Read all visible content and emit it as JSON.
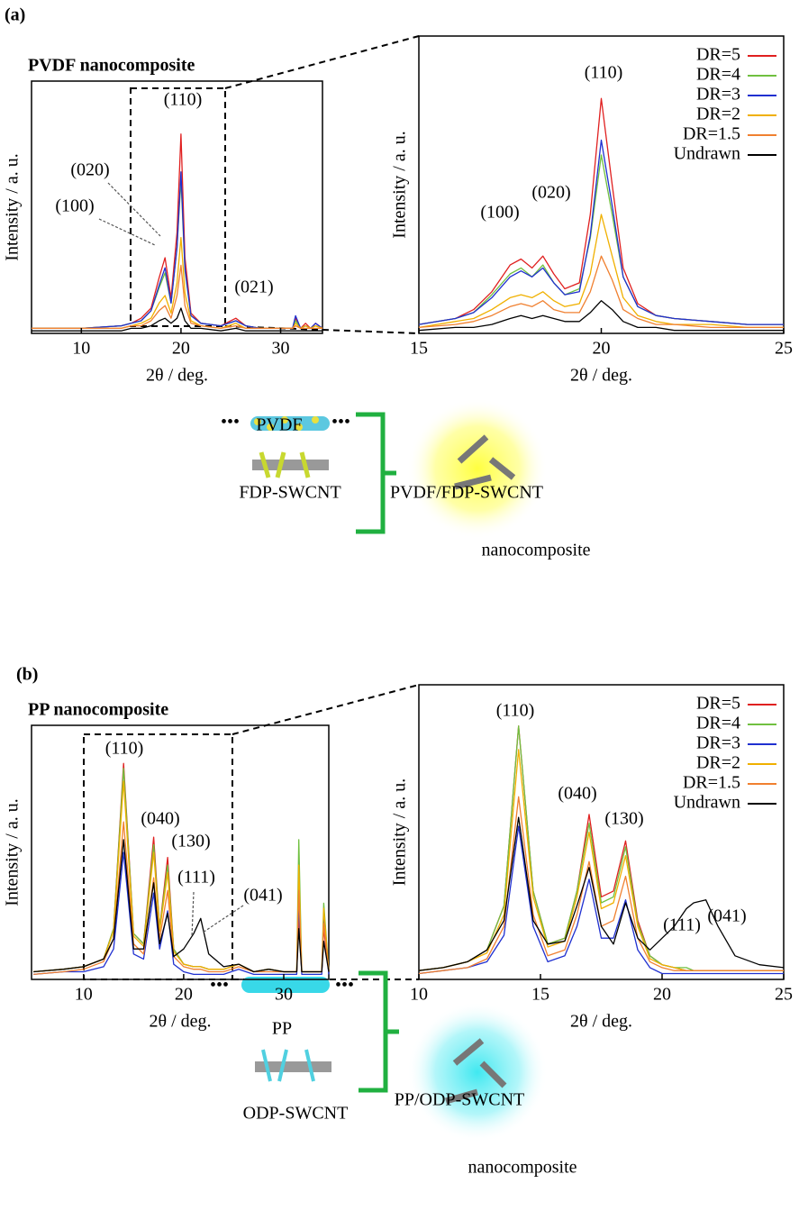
{
  "labels": [
    "(a)",
    "(b)"
  ],
  "chart_data": [
    {
      "type": "line",
      "title": "PVDF nanocomposite",
      "xlabel": "2θ / deg.",
      "ylabel": "Intensity / a. u.",
      "xlim": [
        5,
        34.2
      ],
      "xticks": [
        10,
        20,
        30
      ],
      "ylim": [
        0,
        100
      ],
      "x": [
        5,
        10,
        14,
        15,
        16,
        17,
        17.8,
        18.4,
        19,
        19.6,
        20,
        20.4,
        21,
        22,
        24,
        25.5,
        26.5,
        28,
        30,
        31.2,
        31.5,
        32,
        32.5,
        33,
        33.5,
        34.2
      ],
      "annotations": [
        "(110)",
        "(020)",
        "(100)",
        "(021)"
      ],
      "series": [
        {
          "color": "#e02020",
          "values": [
            2,
            2,
            3,
            4,
            6,
            10,
            22,
            30,
            14,
            40,
            79,
            30,
            8,
            4,
            3,
            6,
            3,
            2,
            2,
            2,
            6,
            2,
            4,
            2,
            4,
            2
          ]
        },
        {
          "color": "#70c040",
          "values": [
            2,
            2,
            3,
            4,
            5,
            9,
            18,
            24,
            12,
            34,
            61,
            25,
            7,
            4,
            3,
            5,
            3,
            2,
            2,
            2,
            5,
            2,
            3,
            2,
            3,
            2
          ]
        },
        {
          "color": "#2030d0",
          "values": [
            2,
            2,
            3,
            4,
            5,
            9,
            19,
            26,
            12,
            34,
            64,
            26,
            7,
            4,
            3,
            5,
            3,
            2,
            2,
            2,
            7,
            2,
            3,
            2,
            4,
            2
          ]
        },
        {
          "color": "#f0b000",
          "values": [
            2,
            2,
            2,
            3,
            4,
            6,
            12,
            15,
            8,
            20,
            38,
            16,
            5,
            3,
            2,
            4,
            2,
            2,
            2,
            2,
            4,
            2,
            3,
            2,
            3,
            2
          ]
        },
        {
          "color": "#f08030",
          "values": [
            2,
            2,
            2,
            3,
            3,
            5,
            9,
            11,
            6,
            15,
            27,
            11,
            4,
            3,
            2,
            3,
            2,
            2,
            2,
            2,
            3,
            2,
            2,
            2,
            2,
            2
          ]
        },
        {
          "color": "#000000",
          "values": [
            1,
            1,
            1,
            2,
            2,
            3,
            5,
            6,
            4,
            6,
            10,
            5,
            2,
            2,
            1,
            2,
            1,
            1,
            1,
            1,
            1,
            1,
            1,
            1,
            1,
            1
          ]
        }
      ]
    },
    {
      "type": "line",
      "xlabel": "2θ / deg.",
      "ylabel": "Intensity / a. u.",
      "legend": "upper right",
      "xlim": [
        15,
        25
      ],
      "xticks": [
        15,
        20,
        25
      ],
      "ylim": [
        0,
        100
      ],
      "x": [
        15,
        16,
        16.5,
        17,
        17.5,
        17.8,
        18.1,
        18.4,
        18.7,
        19,
        19.4,
        19.7,
        20,
        20.3,
        20.6,
        21,
        21.5,
        22,
        23,
        24,
        25
      ],
      "annotations": [
        "(100)",
        "(020)",
        "(110)"
      ],
      "series": [
        {
          "name": "DR=5",
          "color": "#e02020",
          "values": [
            3,
            5,
            8,
            14,
            23,
            25,
            22,
            26,
            20,
            15,
            17,
            40,
            79,
            50,
            22,
            10,
            6,
            5,
            4,
            3,
            3
          ]
        },
        {
          "name": "DR=4",
          "color": "#70c040",
          "values": [
            3,
            5,
            7,
            13,
            20,
            22,
            19,
            23,
            17,
            13,
            15,
            32,
            60,
            40,
            19,
            9,
            6,
            5,
            4,
            3,
            3
          ]
        },
        {
          "name": "DR=3",
          "color": "#2030d0",
          "values": [
            3,
            5,
            7,
            12,
            19,
            21,
            19,
            22,
            17,
            13,
            14,
            33,
            65,
            43,
            19,
            9,
            6,
            5,
            4,
            3,
            3
          ]
        },
        {
          "name": "DR=2",
          "color": "#f0b000",
          "values": [
            2,
            4,
            5,
            8,
            12,
            13,
            12,
            14,
            11,
            9,
            10,
            20,
            40,
            26,
            12,
            6,
            4,
            3,
            3,
            2,
            2
          ]
        },
        {
          "name": "DR=1.5",
          "color": "#f08030",
          "values": [
            2,
            3,
            4,
            6,
            9,
            10,
            9,
            11,
            8,
            7,
            7,
            14,
            26,
            18,
            8,
            5,
            3,
            3,
            2,
            2,
            2
          ]
        },
        {
          "name": "Undrawn",
          "color": "#000000",
          "values": [
            1,
            2,
            2,
            3,
            5,
            6,
            5,
            6,
            5,
            4,
            4,
            7,
            11,
            8,
            4,
            2,
            2,
            1,
            1,
            1,
            1
          ]
        }
      ]
    },
    {
      "type": "line",
      "title": "PP nanocomposite",
      "xlabel": "2θ / deg.",
      "ylabel": "Intensity / a. u.",
      "xlim": [
        4.8,
        34.5
      ],
      "xticks": [
        10,
        20,
        30
      ],
      "ylim": [
        0,
        100
      ],
      "x": [
        5,
        8,
        10,
        12,
        13,
        14,
        15,
        16,
        17,
        17.6,
        18.4,
        19,
        20,
        21,
        21.7,
        22.5,
        24,
        25.5,
        27,
        28.5,
        30,
        31.3,
        31.5,
        31.8,
        33,
        33.8,
        34,
        34.5
      ],
      "annotations": [
        "(110)",
        "(040)",
        "(130)",
        "(111)",
        "(041)"
      ],
      "series": [
        {
          "color": "#e02020",
          "values": [
            3,
            4,
            5,
            8,
            20,
            85,
            18,
            14,
            56,
            20,
            48,
            12,
            6,
            5,
            5,
            4,
            4,
            6,
            3,
            4,
            3,
            3,
            25,
            3,
            3,
            3,
            20,
            3
          ]
        },
        {
          "color": "#70c040",
          "values": [
            3,
            4,
            5,
            8,
            20,
            83,
            18,
            14,
            53,
            20,
            45,
            12,
            6,
            5,
            5,
            4,
            4,
            6,
            3,
            4,
            3,
            3,
            55,
            3,
            3,
            3,
            30,
            3
          ]
        },
        {
          "color": "#2030d0",
          "values": [
            2,
            3,
            3,
            5,
            12,
            50,
            10,
            8,
            34,
            12,
            27,
            6,
            3,
            2,
            2,
            2,
            2,
            4,
            2,
            2,
            2,
            2,
            30,
            2,
            2,
            2,
            25,
            2
          ]
        },
        {
          "color": "#f0b000",
          "values": [
            3,
            4,
            5,
            8,
            19,
            78,
            17,
            13,
            50,
            19,
            42,
            11,
            6,
            5,
            5,
            4,
            4,
            6,
            3,
            4,
            3,
            3,
            45,
            3,
            3,
            3,
            28,
            3
          ]
        },
        {
          "color": "#f08030",
          "values": [
            2,
            3,
            4,
            7,
            16,
            62,
            14,
            10,
            40,
            16,
            35,
            9,
            5,
            4,
            4,
            3,
            3,
            5,
            3,
            3,
            3,
            3,
            35,
            3,
            3,
            3,
            22,
            3
          ]
        },
        {
          "color": "#000000",
          "values": [
            3,
            4,
            5,
            8,
            16,
            55,
            12,
            12,
            38,
            14,
            26,
            9,
            12,
            18,
            24,
            10,
            5,
            6,
            3,
            4,
            3,
            3,
            20,
            3,
            3,
            3,
            15,
            3
          ]
        }
      ]
    },
    {
      "type": "line",
      "xlabel": "2θ / deg.",
      "ylabel": "Intensity / a. u.",
      "legend": "upper right",
      "xlim": [
        10,
        25
      ],
      "xticks": [
        10,
        15,
        20,
        25
      ],
      "ylim": [
        0,
        100
      ],
      "x": [
        10,
        11,
        12,
        12.8,
        13.5,
        14.1,
        14.7,
        15.3,
        16,
        16.5,
        17,
        17.5,
        18,
        18.5,
        19,
        19.5,
        20,
        20.5,
        21,
        21.3,
        21.8,
        22.3,
        23,
        24,
        25
      ],
      "annotations": [
        "(110)",
        "(040)",
        "(130)",
        "(111)",
        "(041)"
      ],
      "series": [
        {
          "name": "DR=5",
          "color": "#e02020",
          "values": [
            3,
            4,
            6,
            10,
            25,
            86,
            30,
            12,
            14,
            30,
            56,
            28,
            30,
            47,
            20,
            8,
            5,
            4,
            3,
            3,
            3,
            3,
            3,
            3,
            3
          ]
        },
        {
          "name": "DR=4",
          "color": "#70c040",
          "values": [
            3,
            4,
            6,
            10,
            25,
            86,
            30,
            12,
            14,
            30,
            53,
            26,
            28,
            45,
            19,
            8,
            5,
            4,
            4,
            3,
            3,
            3,
            3,
            3,
            3
          ]
        },
        {
          "name": "DR=3",
          "color": "#2030d0",
          "values": [
            2,
            3,
            4,
            6,
            15,
            52,
            18,
            6,
            8,
            18,
            34,
            14,
            14,
            27,
            10,
            4,
            2,
            2,
            2,
            2,
            2,
            2,
            2,
            2,
            2
          ]
        },
        {
          "name": "DR=2",
          "color": "#f0b000",
          "values": [
            3,
            4,
            6,
            9,
            22,
            78,
            28,
            11,
            13,
            28,
            50,
            24,
            26,
            42,
            18,
            7,
            5,
            4,
            3,
            3,
            3,
            3,
            3,
            3,
            3
          ]
        },
        {
          "name": "DR=1.5",
          "color": "#f08030",
          "values": [
            2,
            3,
            4,
            7,
            18,
            62,
            22,
            8,
            10,
            22,
            40,
            18,
            20,
            35,
            14,
            6,
            4,
            3,
            3,
            3,
            3,
            3,
            3,
            3,
            3
          ]
        },
        {
          "name": "Undrawn",
          "color": "#000000",
          "values": [
            3,
            4,
            6,
            10,
            20,
            55,
            20,
            12,
            13,
            25,
            38,
            18,
            12,
            26,
            14,
            10,
            14,
            18,
            24,
            26,
            27,
            18,
            8,
            5,
            4
          ]
        }
      ]
    }
  ],
  "diagrams": [
    {
      "polymer": "PVDF",
      "filler": "FDP-SWCNT",
      "product": "PVDF/FDP-SWCNT",
      "product_line2": "nanocomposite"
    },
    {
      "polymer": "PP",
      "filler": "ODP-SWCNT",
      "product": "PP/ODP-SWCNT",
      "product_line2": "nanocomposite"
    }
  ]
}
